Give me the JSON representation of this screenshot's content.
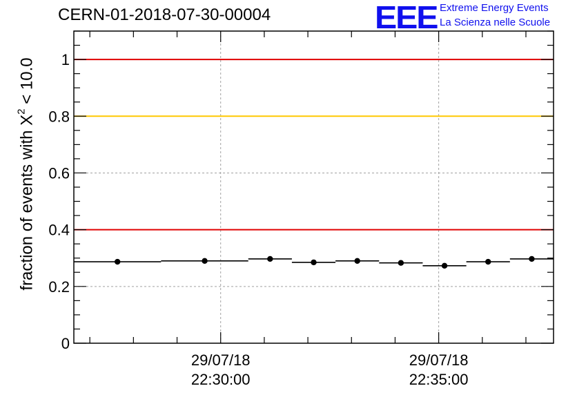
{
  "title": "CERN-01-2018-07-30-00004",
  "logo": {
    "mark": "EEE",
    "line1": "Extreme Energy Events",
    "line2": "La Scienza nelle Scuole",
    "color": "#1010ee"
  },
  "chart_data": {
    "type": "scatter",
    "ylabel_prefix": "fraction of events with X",
    "ylabel_sup": "2",
    "ylabel_suffix": " < 10.0",
    "ylim": [
      0,
      1.1
    ],
    "yticks": [
      0,
      0.2,
      0.4,
      0.6,
      0.8,
      1
    ],
    "ytick_labels": [
      "0",
      "0.2",
      "0.4",
      "0.6",
      "0.8",
      "1"
    ],
    "xlim": [
      "2018-07-29 22:26:38",
      "2018-07-29 22:37:38"
    ],
    "xticks": [
      {
        "time": "2018-07-29 22:30:00",
        "label_date": "29/07/18",
        "label_time": "22:30:00"
      },
      {
        "time": "2018-07-29 22:35:00",
        "label_date": "29/07/18",
        "label_time": "22:35:00"
      }
    ],
    "points": [
      {
        "start": "2018-07-29 22:26:38",
        "end": "2018-07-29 22:28:38",
        "y": 0.287
      },
      {
        "start": "2018-07-29 22:28:38",
        "end": "2018-07-29 22:30:38",
        "y": 0.29
      },
      {
        "start": "2018-07-29 22:30:38",
        "end": "2018-07-29 22:31:38",
        "y": 0.297
      },
      {
        "start": "2018-07-29 22:31:38",
        "end": "2018-07-29 22:32:38",
        "y": 0.285
      },
      {
        "start": "2018-07-29 22:32:38",
        "end": "2018-07-29 22:33:38",
        "y": 0.29
      },
      {
        "start": "2018-07-29 22:33:38",
        "end": "2018-07-29 22:34:38",
        "y": 0.283
      },
      {
        "start": "2018-07-29 22:34:38",
        "end": "2018-07-29 22:35:38",
        "y": 0.273
      },
      {
        "start": "2018-07-29 22:35:38",
        "end": "2018-07-29 22:36:38",
        "y": 0.287
      },
      {
        "start": "2018-07-29 22:36:38",
        "end": "2018-07-29 22:37:38",
        "y": 0.297
      }
    ],
    "reference_lines": [
      {
        "y": 1.0,
        "color": "#e00000"
      },
      {
        "y": 0.8,
        "color": "#ffc800"
      },
      {
        "y": 0.4,
        "color": "#e00000"
      }
    ],
    "grid": true,
    "marker_color": "#000000"
  }
}
